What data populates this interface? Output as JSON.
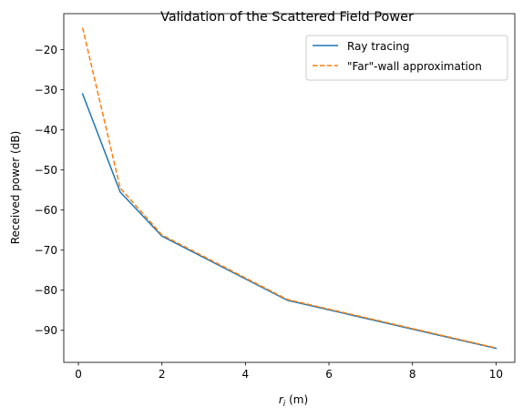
{
  "chart_data": {
    "type": "line",
    "title": "Validation of the Scattered Field Power",
    "xlabel_var": "r",
    "xlabel_sub": "i",
    "xlabel_unit": " (m)",
    "ylabel": "Received power (dB)",
    "xlim": [
      -0.35,
      10.45
    ],
    "ylim": [
      -98,
      -11
    ],
    "xticks": [
      0,
      2,
      4,
      6,
      8,
      10
    ],
    "yticks": [
      -20,
      -30,
      -40,
      -50,
      -60,
      -70,
      -80,
      -90
    ],
    "grid": false,
    "legend_position": "top-right",
    "series": [
      {
        "name": "Ray tracing",
        "color": "#1f77b4",
        "style": "solid",
        "x": [
          0.1,
          1,
          2,
          5,
          10
        ],
        "y": [
          -31,
          -55.5,
          -66.5,
          -82.5,
          -94.5
        ]
      },
      {
        "name": "\"Far\"-wall approximation",
        "color": "#ff7f0e",
        "style": "dashed",
        "x": [
          0.1,
          1,
          2,
          5,
          10
        ],
        "y": [
          -14.5,
          -54.5,
          -66.2,
          -82.3,
          -94.4
        ]
      }
    ]
  }
}
